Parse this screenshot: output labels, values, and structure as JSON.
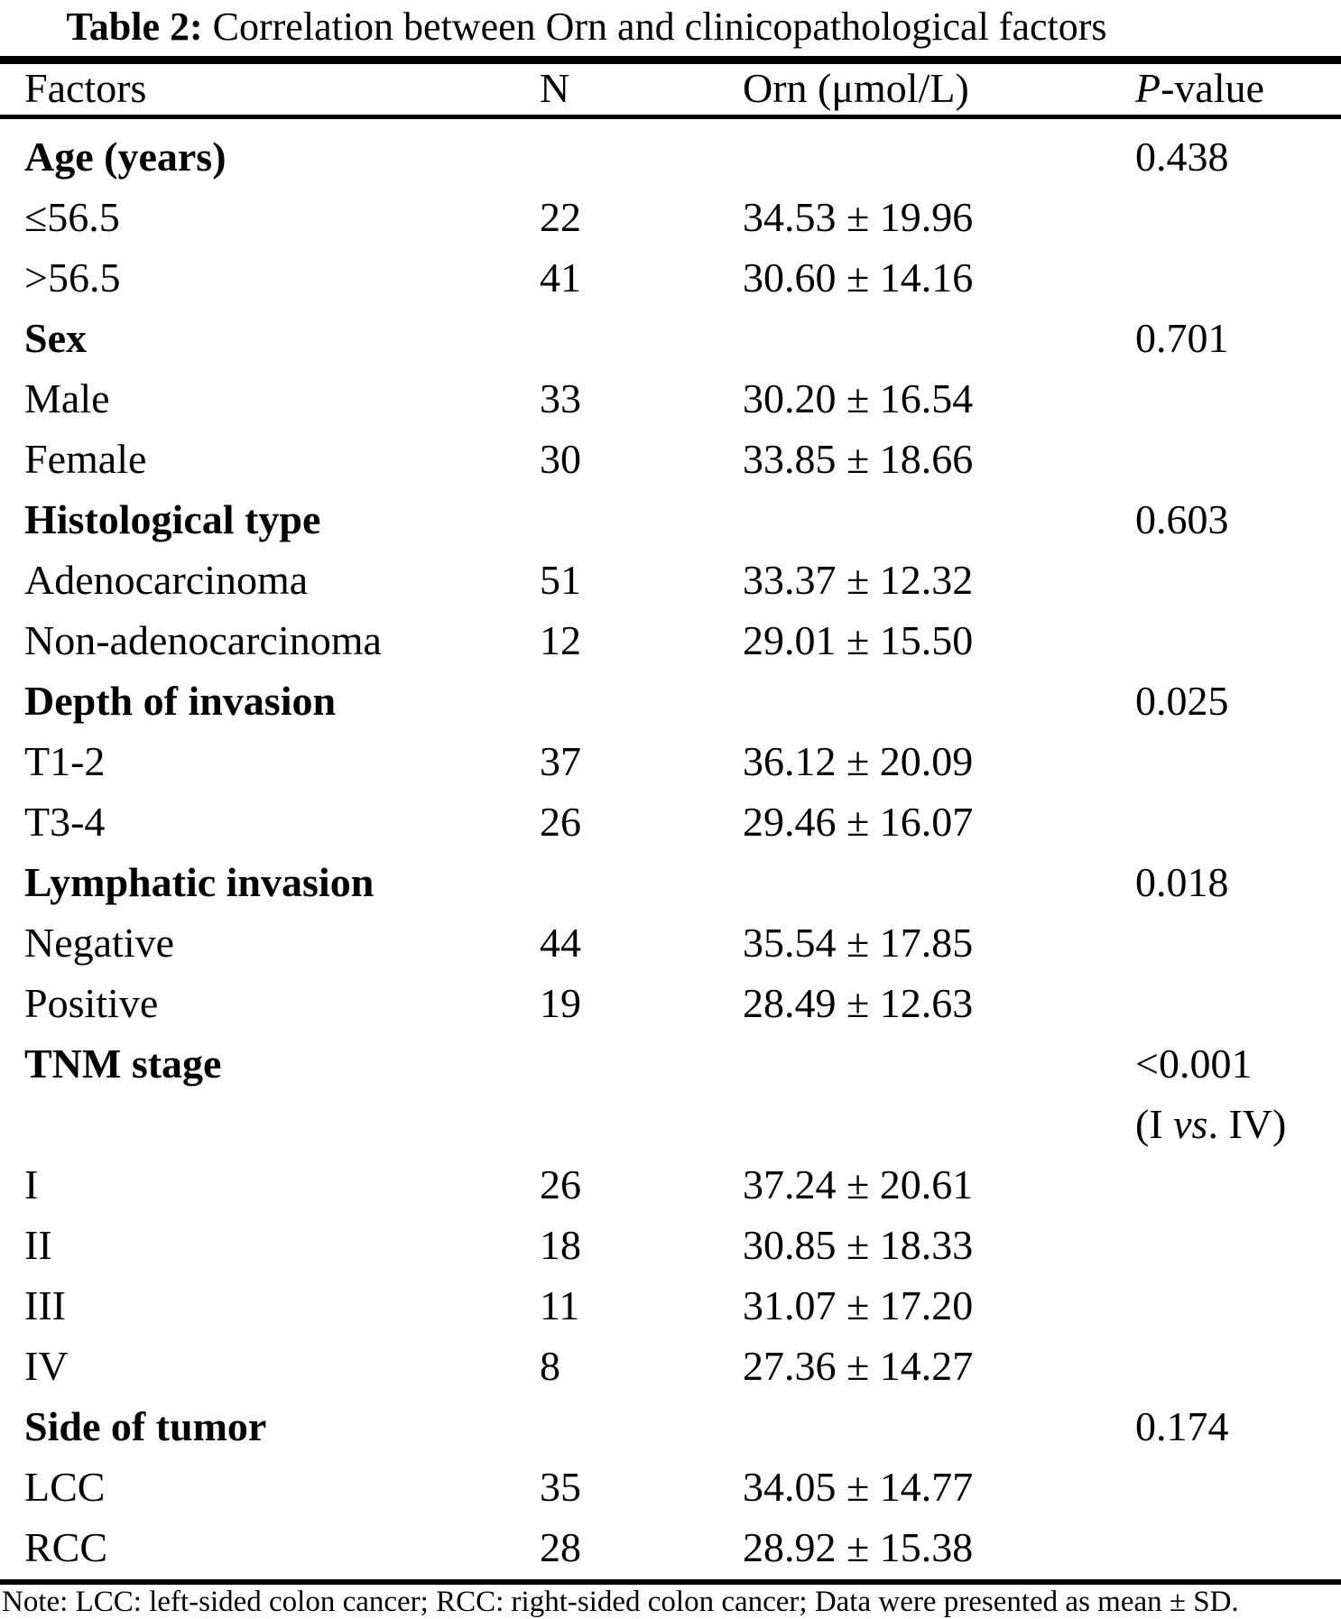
{
  "title": {
    "label": "Table 2:",
    "text": " Correlation between Orn and clinicopathological factors"
  },
  "header": {
    "factors": "Factors",
    "n": "N",
    "orn": "Orn (μmol/L)",
    "p_italic": "P",
    "p_rest": "-value"
  },
  "table": {
    "rows": [
      {
        "factor": "Age (years)",
        "p": "0.438"
      },
      {
        "factor": "≤56.5",
        "n": "22",
        "orn": "34.53 ± 19.96"
      },
      {
        "factor": ">56.5",
        "n": "41",
        "orn": "30.60 ± 14.16"
      },
      {
        "factor": "Sex",
        "p": "0.701"
      },
      {
        "factor": "Male",
        "n": "33",
        "orn": "30.20 ± 16.54"
      },
      {
        "factor": "Female",
        "n": "30",
        "orn": "33.85 ± 18.66"
      },
      {
        "factor": "Histological type",
        "p": "0.603"
      },
      {
        "factor": "Adenocarcinoma",
        "n": "51",
        "orn": "33.37 ± 12.32"
      },
      {
        "factor": "Non-adenocarcinoma",
        "n": "12",
        "orn": "29.01 ± 15.50"
      },
      {
        "factor": "Depth of invasion",
        "p": "0.025"
      },
      {
        "factor": "T1-2",
        "n": "37",
        "orn": "36.12 ± 20.09"
      },
      {
        "factor": "T3-4",
        "n": "26",
        "orn": "29.46 ± 16.07"
      },
      {
        "factor": "Lymphatic invasion",
        "p": "0.018"
      },
      {
        "factor": "Negative",
        "n": "44",
        "orn": "35.54 ± 17.85"
      },
      {
        "factor": "Positive",
        "n": "19",
        "orn": "28.49 ± 12.63"
      },
      {
        "factor": "TNM stage",
        "p": "<0.001"
      },
      {
        "p_pre": "(I ",
        "p_vs": "vs",
        "p_post": ". IV)"
      },
      {
        "factor": "I",
        "n": "26",
        "orn": "37.24 ± 20.61"
      },
      {
        "factor": "II",
        "n": "18",
        "orn": "30.85 ± 18.33"
      },
      {
        "factor": "III",
        "n": "11",
        "orn": "31.07 ± 17.20"
      },
      {
        "factor": "IV",
        "n": "8",
        "orn": "27.36 ± 14.27"
      },
      {
        "factor": "Side of tumor",
        "p": "0.174"
      },
      {
        "factor": "LCC",
        "n": "35",
        "orn": "34.05 ± 14.77"
      },
      {
        "factor": "RCC",
        "n": "28",
        "orn": "28.92 ± 15.38"
      }
    ]
  },
  "note": "Note: LCC: left-sided colon cancer; RCC: right-sided colon cancer; Data were presented as mean ± SD.",
  "colors": {
    "text": "#000000",
    "background": "#ffffff",
    "rule": "#000000"
  }
}
